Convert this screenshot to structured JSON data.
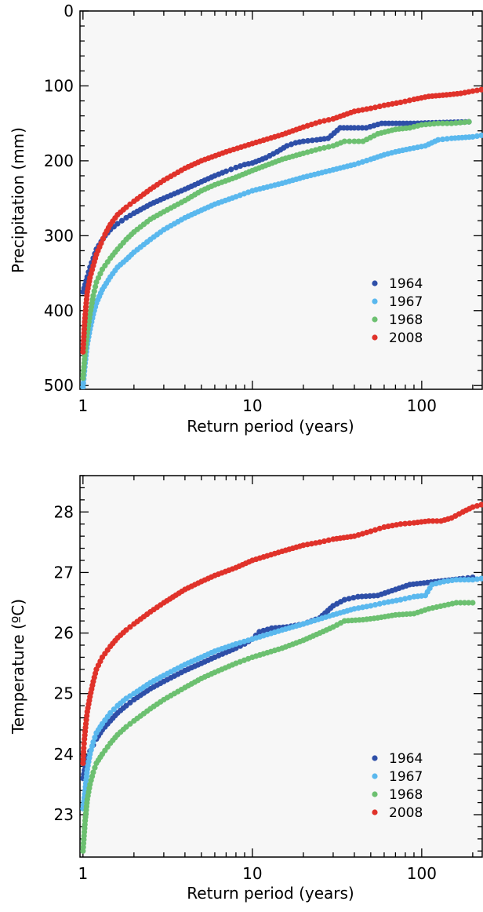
{
  "chart_data": [
    {
      "type": "scatter",
      "title": "",
      "xlabel": "Return period (years)",
      "ylabel": "Precipitation (mm)",
      "xscale": "log",
      "xlim": [
        0.96,
        230
      ],
      "ylim": [
        0,
        505
      ],
      "y_inverted": true,
      "xticks": [
        1,
        10,
        100
      ],
      "xtick_labels": [
        "1",
        "10",
        "100"
      ],
      "yticks": [
        0,
        100,
        200,
        300,
        400,
        500
      ],
      "ytick_labels": [
        "0",
        "100",
        "200",
        "300",
        "400",
        "500"
      ],
      "legend_position": "bottom-right",
      "series": [
        {
          "name": "1964",
          "color": "#2e4fa8",
          "points": [
            [
              1.0,
              375
            ],
            [
              1.03,
              365
            ],
            [
              1.06,
              355
            ],
            [
              1.1,
              342
            ],
            [
              1.15,
              330
            ],
            [
              1.2,
              318
            ],
            [
              1.28,
              308
            ],
            [
              1.35,
              300
            ],
            [
              1.45,
              292
            ],
            [
              1.6,
              284
            ],
            [
              1.8,
              276
            ],
            [
              2.0,
              270
            ],
            [
              2.5,
              258
            ],
            [
              3.0,
              250
            ],
            [
              4.0,
              238
            ],
            [
              5.0,
              228
            ],
            [
              6.0,
              220
            ],
            [
              7.0,
              214
            ],
            [
              8.0,
              209
            ],
            [
              9.0,
              205
            ],
            [
              10.0,
              203
            ],
            [
              12.0,
              196
            ],
            [
              14.0,
              188
            ],
            [
              16.0,
              180
            ],
            [
              18.0,
              176
            ],
            [
              20.0,
              174
            ],
            [
              24.0,
              172
            ],
            [
              28.0,
              170
            ],
            [
              33.0,
              156
            ],
            [
              40.0,
              156
            ],
            [
              47.0,
              156
            ],
            [
              58.0,
              150
            ],
            [
              90.0,
              150
            ],
            [
              190.0,
              148
            ]
          ]
        },
        {
          "name": "1967",
          "color": "#5ab8ee",
          "points": [
            [
              1.0,
              502
            ],
            [
              1.03,
              470
            ],
            [
              1.06,
              445
            ],
            [
              1.1,
              425
            ],
            [
              1.15,
              405
            ],
            [
              1.2,
              390
            ],
            [
              1.3,
              372
            ],
            [
              1.45,
              355
            ],
            [
              1.6,
              342
            ],
            [
              1.8,
              332
            ],
            [
              2.0,
              322
            ],
            [
              2.5,
              305
            ],
            [
              3.0,
              292
            ],
            [
              4.0,
              276
            ],
            [
              5.0,
              266
            ],
            [
              6.0,
              258
            ],
            [
              8.0,
              248
            ],
            [
              10.0,
              240
            ],
            [
              15.0,
              230
            ],
            [
              20.0,
              222
            ],
            [
              30.0,
              212
            ],
            [
              40.0,
              205
            ],
            [
              50.0,
              198
            ],
            [
              60.0,
              192
            ],
            [
              70.0,
              188
            ],
            [
              85.0,
              184
            ],
            [
              105.0,
              180
            ],
            [
              125.0,
              172
            ],
            [
              150.0,
              170
            ],
            [
              200.0,
              168
            ],
            [
              225.0,
              166
            ]
          ]
        },
        {
          "name": "1968",
          "color": "#6cc070",
          "points": [
            [
              1.0,
              490
            ],
            [
              1.03,
              455
            ],
            [
              1.06,
              430
            ],
            [
              1.1,
              405
            ],
            [
              1.15,
              380
            ],
            [
              1.2,
              362
            ],
            [
              1.3,
              345
            ],
            [
              1.45,
              330
            ],
            [
              1.6,
              318
            ],
            [
              1.8,
              305
            ],
            [
              2.0,
              295
            ],
            [
              2.5,
              278
            ],
            [
              3.0,
              268
            ],
            [
              4.0,
              253
            ],
            [
              5.0,
              240
            ],
            [
              6.0,
              232
            ],
            [
              8.0,
              222
            ],
            [
              10.0,
              213
            ],
            [
              15.0,
              198
            ],
            [
              20.0,
              190
            ],
            [
              25.0,
              184
            ],
            [
              30.0,
              180
            ],
            [
              35.0,
              174
            ],
            [
              40.0,
              174
            ],
            [
              45.0,
              174
            ],
            [
              55.0,
              164
            ],
            [
              70.0,
              158
            ],
            [
              85.0,
              156
            ],
            [
              100.0,
              152
            ],
            [
              125.0,
              150
            ],
            [
              150.0,
              150
            ],
            [
              190.0,
              148
            ]
          ]
        },
        {
          "name": "2008",
          "color": "#e0322a",
          "points": [
            [
              1.0,
              455
            ],
            [
              1.02,
              420
            ],
            [
              1.04,
              395
            ],
            [
              1.06,
              375
            ],
            [
              1.1,
              356
            ],
            [
              1.15,
              340
            ],
            [
              1.2,
              325
            ],
            [
              1.28,
              310
            ],
            [
              1.35,
              298
            ],
            [
              1.45,
              285
            ],
            [
              1.6,
              272
            ],
            [
              1.8,
              262
            ],
            [
              2.0,
              254
            ],
            [
              2.5,
              238
            ],
            [
              3.0,
              226
            ],
            [
              4.0,
              210
            ],
            [
              5.0,
              200
            ],
            [
              7.0,
              188
            ],
            [
              10.0,
              177
            ],
            [
              15.0,
              165
            ],
            [
              20.0,
              155
            ],
            [
              25.0,
              148
            ],
            [
              30.0,
              144
            ],
            [
              40.0,
              134
            ],
            [
              50.0,
              130
            ],
            [
              60.0,
              126
            ],
            [
              75.0,
              122
            ],
            [
              90.0,
              118
            ],
            [
              110.0,
              114
            ],
            [
              140.0,
              112
            ],
            [
              170.0,
              110
            ],
            [
              200.0,
              107
            ],
            [
              225.0,
              105
            ]
          ]
        }
      ]
    },
    {
      "type": "scatter",
      "title": "",
      "xlabel": "Return period (years)",
      "ylabel": "Temperature (ºC)",
      "xscale": "log",
      "xlim": [
        0.96,
        230
      ],
      "ylim": [
        22.3,
        28.6
      ],
      "y_inverted": false,
      "xticks": [
        1,
        10,
        100
      ],
      "xtick_labels": [
        "1",
        "10",
        "100"
      ],
      "yticks": [
        23,
        24,
        25,
        26,
        27,
        28
      ],
      "ytick_labels": [
        "23",
        "24",
        "25",
        "26",
        "27",
        "28"
      ],
      "legend_position": "bottom-right",
      "series": [
        {
          "name": "1964",
          "color": "#2e4fa8",
          "points": [
            [
              1.0,
              23.6
            ],
            [
              1.03,
              23.8
            ],
            [
              1.06,
              23.95
            ],
            [
              1.1,
              24.05
            ],
            [
              1.15,
              24.15
            ],
            [
              1.2,
              24.25
            ],
            [
              1.3,
              24.4
            ],
            [
              1.45,
              24.55
            ],
            [
              1.6,
              24.68
            ],
            [
              1.8,
              24.8
            ],
            [
              2.0,
              24.9
            ],
            [
              2.5,
              25.08
            ],
            [
              3.0,
              25.2
            ],
            [
              4.0,
              25.38
            ],
            [
              5.0,
              25.5
            ],
            [
              6.0,
              25.6
            ],
            [
              7.0,
              25.68
            ],
            [
              8.0,
              25.75
            ],
            [
              9.0,
              25.82
            ],
            [
              10.0,
              25.9
            ],
            [
              11.0,
              26.02
            ],
            [
              13.0,
              26.08
            ],
            [
              16.0,
              26.1
            ],
            [
              20.0,
              26.15
            ],
            [
              25.0,
              26.25
            ],
            [
              30.0,
              26.45
            ],
            [
              35.0,
              26.55
            ],
            [
              42.0,
              26.6
            ],
            [
              55.0,
              26.62
            ],
            [
              85.0,
              26.8
            ],
            [
              175.0,
              26.9
            ],
            [
              200.0,
              26.92
            ]
          ]
        },
        {
          "name": "1967",
          "color": "#5ab8ee",
          "points": [
            [
              1.0,
              23.1
            ],
            [
              1.03,
              23.4
            ],
            [
              1.06,
              23.75
            ],
            [
              1.1,
              24.0
            ],
            [
              1.15,
              24.2
            ],
            [
              1.2,
              24.35
            ],
            [
              1.3,
              24.5
            ],
            [
              1.45,
              24.68
            ],
            [
              1.6,
              24.8
            ],
            [
              1.8,
              24.92
            ],
            [
              2.0,
              25.0
            ],
            [
              2.5,
              25.18
            ],
            [
              3.0,
              25.3
            ],
            [
              4.0,
              25.48
            ],
            [
              5.0,
              25.6
            ],
            [
              6.0,
              25.7
            ],
            [
              8.0,
              25.82
            ],
            [
              10.0,
              25.9
            ],
            [
              15.0,
              26.05
            ],
            [
              20.0,
              26.15
            ],
            [
              30.0,
              26.3
            ],
            [
              40.0,
              26.4
            ],
            [
              50.0,
              26.45
            ],
            [
              60.0,
              26.5
            ],
            [
              75.0,
              26.55
            ],
            [
              90.0,
              26.6
            ],
            [
              105.0,
              26.62
            ],
            [
              115.0,
              26.8
            ],
            [
              135.0,
              26.85
            ],
            [
              160.0,
              26.88
            ],
            [
              200.0,
              26.88
            ],
            [
              225.0,
              26.9
            ]
          ]
        },
        {
          "name": "1968",
          "color": "#6cc070",
          "points": [
            [
              1.0,
              22.4
            ],
            [
              1.03,
              22.9
            ],
            [
              1.06,
              23.25
            ],
            [
              1.1,
              23.5
            ],
            [
              1.15,
              23.7
            ],
            [
              1.2,
              23.85
            ],
            [
              1.3,
              24.0
            ],
            [
              1.45,
              24.18
            ],
            [
              1.6,
              24.32
            ],
            [
              1.8,
              24.45
            ],
            [
              2.0,
              24.55
            ],
            [
              2.5,
              24.75
            ],
            [
              3.0,
              24.9
            ],
            [
              4.0,
              25.1
            ],
            [
              5.0,
              25.25
            ],
            [
              6.0,
              25.35
            ],
            [
              8.0,
              25.5
            ],
            [
              10.0,
              25.6
            ],
            [
              15.0,
              25.75
            ],
            [
              20.0,
              25.88
            ],
            [
              25.0,
              26.0
            ],
            [
              30.0,
              26.1
            ],
            [
              35.0,
              26.2
            ],
            [
              45.0,
              26.22
            ],
            [
              55.0,
              26.25
            ],
            [
              70.0,
              26.3
            ],
            [
              90.0,
              26.32
            ],
            [
              110.0,
              26.4
            ],
            [
              160.0,
              26.5
            ],
            [
              200.0,
              26.5
            ]
          ]
        },
        {
          "name": "2008",
          "color": "#e0322a",
          "points": [
            [
              1.0,
              23.85
            ],
            [
              1.01,
              24.1
            ],
            [
              1.02,
              24.25
            ],
            [
              1.04,
              24.5
            ],
            [
              1.06,
              24.7
            ],
            [
              1.1,
              24.95
            ],
            [
              1.15,
              25.2
            ],
            [
              1.2,
              25.4
            ],
            [
              1.3,
              25.6
            ],
            [
              1.45,
              25.78
            ],
            [
              1.6,
              25.92
            ],
            [
              1.8,
              26.05
            ],
            [
              2.0,
              26.15
            ],
            [
              2.5,
              26.35
            ],
            [
              3.0,
              26.5
            ],
            [
              4.0,
              26.72
            ],
            [
              5.0,
              26.85
            ],
            [
              6.0,
              26.95
            ],
            [
              8.0,
              27.08
            ],
            [
              10.0,
              27.2
            ],
            [
              15.0,
              27.35
            ],
            [
              20.0,
              27.45
            ],
            [
              25.0,
              27.5
            ],
            [
              30.0,
              27.55
            ],
            [
              40.0,
              27.6
            ],
            [
              50.0,
              27.68
            ],
            [
              60.0,
              27.75
            ],
            [
              75.0,
              27.8
            ],
            [
              90.0,
              27.82
            ],
            [
              110.0,
              27.85
            ],
            [
              130.0,
              27.85
            ],
            [
              150.0,
              27.9
            ],
            [
              175.0,
              28.0
            ],
            [
              200.0,
              28.08
            ],
            [
              225.0,
              28.12
            ]
          ]
        }
      ]
    }
  ]
}
